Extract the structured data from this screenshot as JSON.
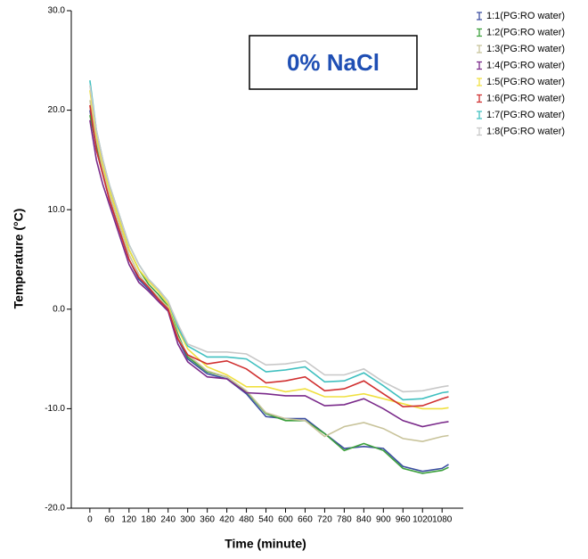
{
  "chart_data": {
    "type": "line",
    "annotation": "0% NaCl",
    "x_label": "Time (minute)",
    "y_label": "Temperature (°C)",
    "x": [
      0,
      20,
      40,
      60,
      90,
      120,
      150,
      180,
      210,
      240,
      270,
      300,
      360,
      420,
      480,
      540,
      600,
      660,
      720,
      780,
      840,
      900,
      960,
      1020,
      1080,
      1100
    ],
    "xlim": [
      -57,
      1145
    ],
    "xticks": [
      0,
      60,
      120,
      180,
      240,
      300,
      360,
      420,
      480,
      540,
      600,
      660,
      720,
      780,
      840,
      900,
      960,
      1020,
      1080
    ],
    "ylim": [
      -20,
      30
    ],
    "yticks": [
      {
        "value": 30,
        "label": "30.0"
      },
      {
        "value": 20,
        "label": "20.0"
      },
      {
        "value": 10,
        "label": "10.0"
      },
      {
        "value": 0,
        "label": "0.0"
      },
      {
        "value": -10,
        "label": "-10.0"
      },
      {
        "value": -20,
        "label": "-20.0"
      }
    ],
    "series": [
      {
        "name": "1:1(PG:RO water)",
        "color": "#3b4da0",
        "values": [
          20,
          16,
          13.5,
          11,
          8,
          5,
          3,
          2,
          1,
          0,
          -3,
          -5,
          -6.5,
          -7,
          -8.5,
          -10.8,
          -11,
          -11,
          -12.5,
          -14,
          -13.8,
          -14,
          -15.8,
          -16.3,
          -16,
          -15.6
        ]
      },
      {
        "name": "1:2(PG:RO water)",
        "color": "#3ca03c",
        "values": [
          19.5,
          16.5,
          14,
          12,
          9,
          6,
          4,
          2.5,
          1.5,
          0.3,
          -2.5,
          -4.8,
          -6.3,
          -6.8,
          -8.3,
          -10.5,
          -11.2,
          -11.2,
          -12.5,
          -14.2,
          -13.5,
          -14.2,
          -16,
          -16.5,
          -16.2,
          -15.9
        ]
      },
      {
        "name": "1:3(PG:RO water)",
        "color": "#c8c39a",
        "values": [
          21,
          17,
          14,
          11.5,
          8.5,
          5.5,
          3.5,
          2.2,
          1.2,
          0.2,
          -2.8,
          -4.6,
          -6.2,
          -6.8,
          -8.2,
          -10.4,
          -11,
          -11.2,
          -12.8,
          -11.8,
          -11.4,
          -12,
          -13,
          -13.3,
          -12.8,
          -12.7
        ]
      },
      {
        "name": "1:4(PG:RO water)",
        "color": "#7a2a8a",
        "values": [
          19,
          15,
          12.5,
          10.5,
          7.5,
          4.5,
          2.7,
          1.8,
          0.8,
          -0.2,
          -3.5,
          -5.3,
          -6.8,
          -7,
          -8.4,
          -8.5,
          -8.7,
          -8.7,
          -9.7,
          -9.6,
          -9,
          -10,
          -11.2,
          -11.8,
          -11.4,
          -11.3
        ]
      },
      {
        "name": "1:5(PG:RO water)",
        "color": "#f0e040",
        "values": [
          22,
          17.5,
          14.5,
          12,
          9,
          6,
          4,
          2.8,
          1.8,
          0.5,
          -2,
          -4,
          -5.8,
          -6.6,
          -7.8,
          -7.8,
          -8.3,
          -8,
          -8.8,
          -8.8,
          -8.5,
          -9,
          -9.5,
          -10,
          -10,
          -9.9
        ]
      },
      {
        "name": "1:6(PG:RO water)",
        "color": "#d03030",
        "values": [
          20.5,
          16,
          13.5,
          11,
          8,
          5,
          3.2,
          2.2,
          1,
          0,
          -3,
          -4.6,
          -5.5,
          -5.2,
          -6,
          -7.4,
          -7.2,
          -6.8,
          -8.2,
          -8,
          -7.2,
          -8.5,
          -9.8,
          -9.7,
          -9,
          -8.8
        ]
      },
      {
        "name": "1:7(PG:RO water)",
        "color": "#40c0c0",
        "values": [
          23,
          18,
          15,
          12.5,
          9.5,
          6.5,
          4.5,
          3,
          2,
          0.8,
          -1.8,
          -3.7,
          -4.8,
          -4.8,
          -5,
          -6.3,
          -6.1,
          -5.8,
          -7.3,
          -7.2,
          -6.4,
          -7.7,
          -9.1,
          -9,
          -8.4,
          -8.3
        ]
      },
      {
        "name": "1:8(PG:RO water)",
        "color": "#c8c8c8",
        "values": [
          22.5,
          18,
          15,
          12.5,
          9.5,
          6.5,
          4.5,
          3,
          2,
          0.8,
          -1.5,
          -3.5,
          -4.3,
          -4.3,
          -4.5,
          -5.6,
          -5.5,
          -5.2,
          -6.6,
          -6.6,
          -6,
          -7.3,
          -8.3,
          -8.2,
          -7.8,
          -7.7
        ]
      }
    ]
  }
}
